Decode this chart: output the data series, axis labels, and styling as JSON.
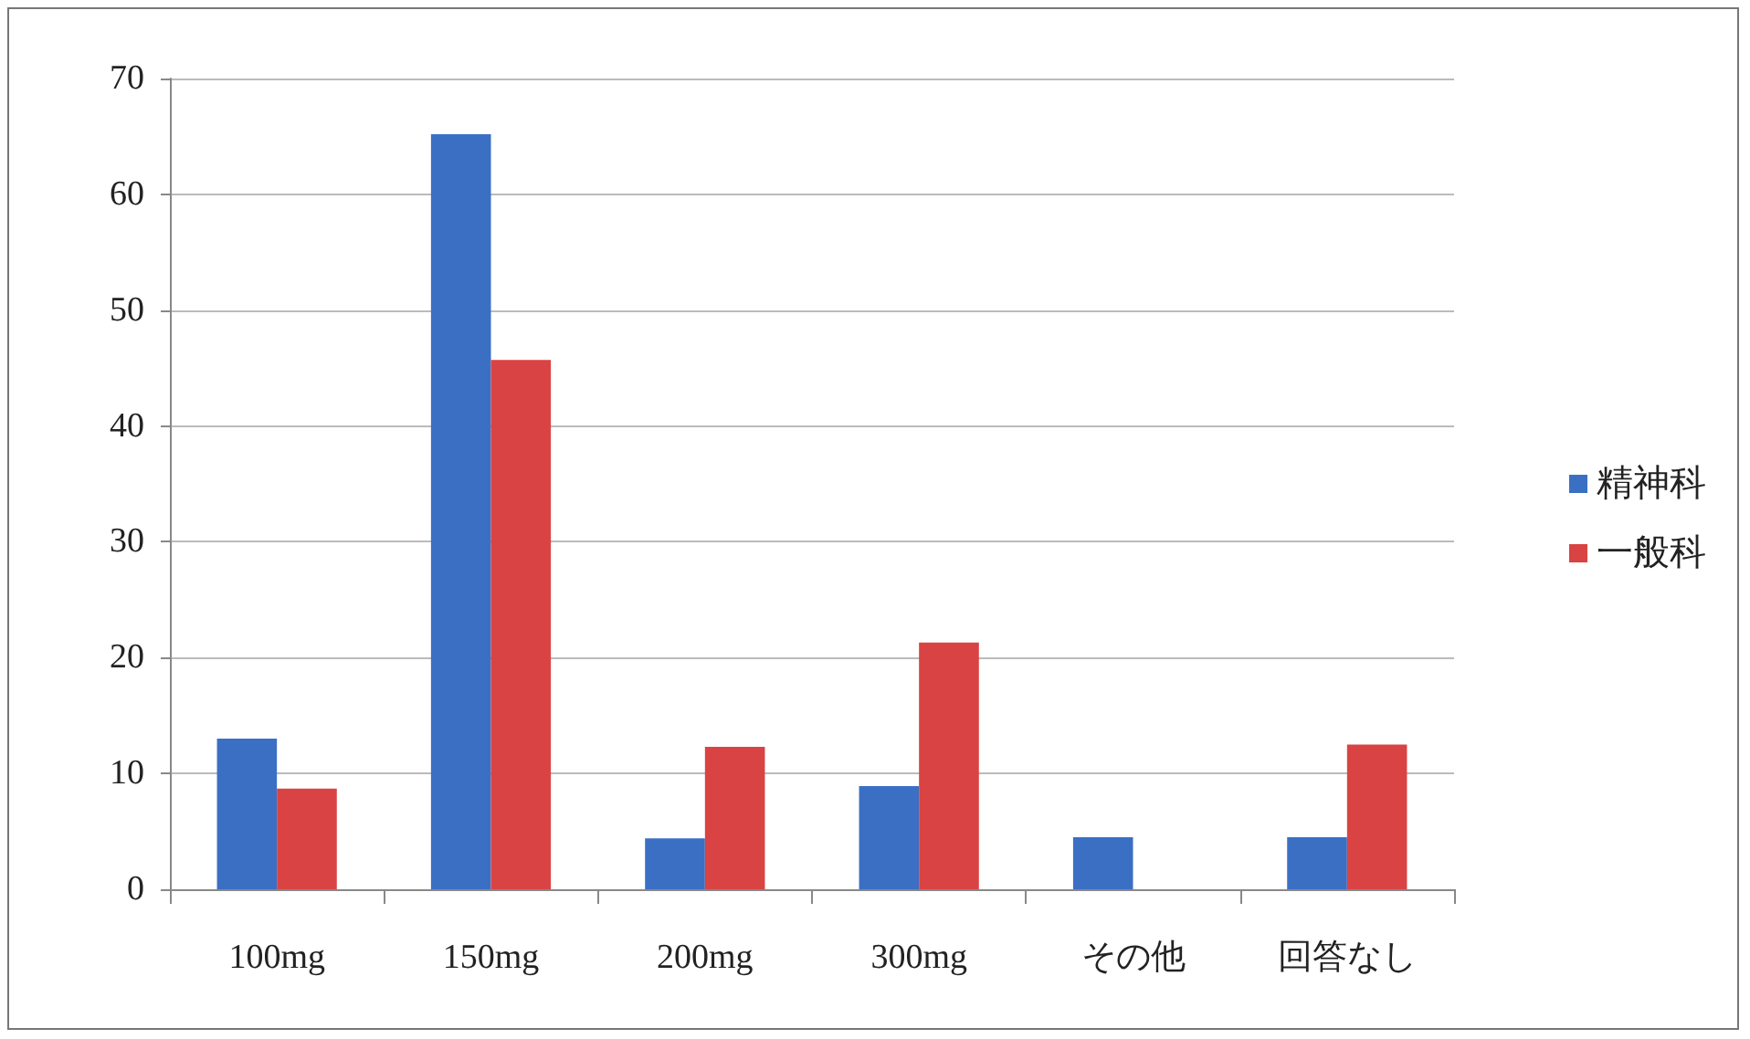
{
  "chart_data": {
    "type": "bar",
    "categories": [
      "100mg",
      "150mg",
      "200mg",
      "300mg",
      "その他",
      "回答なし"
    ],
    "series": [
      {
        "name": "精神科",
        "color": "#3a6fc4",
        "values": [
          13,
          65.2,
          4.4,
          8.9,
          4.5,
          4.5
        ]
      },
      {
        "name": "一般科",
        "color": "#d94343",
        "values": [
          8.7,
          45.7,
          12.3,
          21.3,
          0,
          12.5
        ]
      }
    ],
    "ylim": [
      0,
      70
    ],
    "yticks": [
      0,
      10,
      20,
      30,
      40,
      50,
      60,
      70
    ],
    "grid": "y",
    "legend": "right"
  }
}
